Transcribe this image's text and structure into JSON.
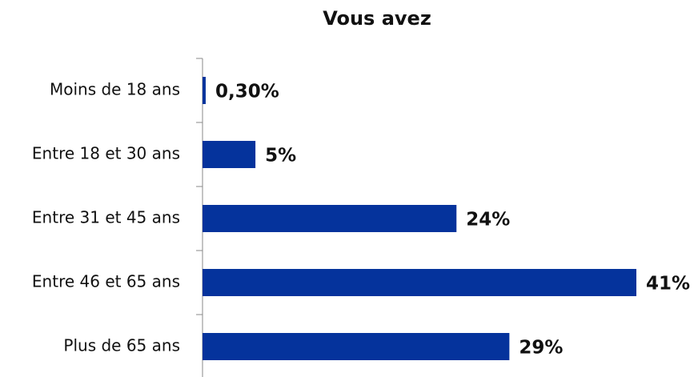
{
  "chart_data": {
    "type": "hbar",
    "title": "Vous avez",
    "categories": [
      "Moins de 18 ans",
      "Entre 18 et 30 ans",
      "Entre 31 et 45 ans",
      "Entre 46 et 65 ans",
      "Plus de 65 ans"
    ],
    "values": [
      0.3,
      5,
      24,
      41,
      29
    ],
    "value_labels": [
      "0,30%",
      "5%",
      "24%",
      "41%",
      "29%"
    ],
    "color": "#05339c"
  }
}
